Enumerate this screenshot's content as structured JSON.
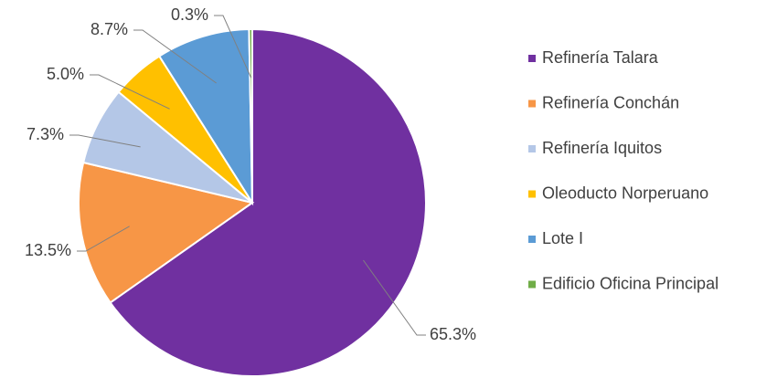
{
  "chart_data": {
    "type": "pie",
    "categories": [
      "Refinería Talara",
      "Refinería Conchán",
      "Refinería Iquitos",
      "Oleoducto Norperuano",
      "Lote I",
      "Edificio Oficina Principal"
    ],
    "values": [
      65.3,
      13.5,
      7.3,
      5.0,
      8.7,
      0.3
    ],
    "value_labels": [
      "65.3%",
      "13.5%",
      "7.3%",
      "5.0%",
      "8.7%",
      "0.3%"
    ],
    "colors": [
      "#7030a0",
      "#f79646",
      "#b4c7e7",
      "#ffc000",
      "#5b9bd5",
      "#70ad47"
    ],
    "legend": "right"
  }
}
